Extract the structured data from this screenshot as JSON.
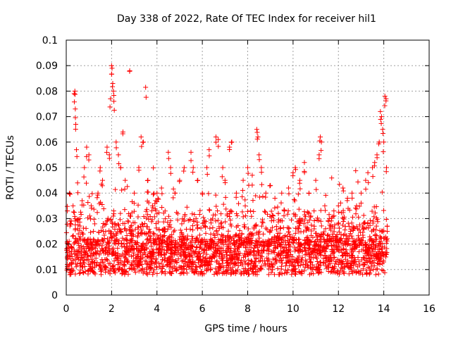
{
  "chart_data": {
    "type": "scatter",
    "title": "Day 338 of 2022, Rate Of TEC Index for receiver hil1",
    "xlabel": "GPS time / hours",
    "ylabel": "ROTI / TECUs",
    "xlim": [
      0,
      16
    ],
    "ylim": [
      0,
      0.1
    ],
    "x_ticks": [
      "0",
      "2",
      "4",
      "6",
      "8",
      "10",
      "12",
      "14",
      "16"
    ],
    "x_tick_values": [
      0,
      2,
      4,
      6,
      8,
      10,
      12,
      14,
      16
    ],
    "y_ticks": [
      "0",
      "0.01",
      "0.02",
      "0.03",
      "0.04",
      "0.05",
      "0.06",
      "0.07",
      "0.08",
      "0.09",
      "0.1"
    ],
    "y_tick_values": [
      0,
      0.01,
      0.02,
      0.03,
      0.04,
      0.05,
      0.06,
      0.07,
      0.08,
      0.09,
      0.1
    ],
    "grid": true,
    "marker": "+",
    "color": "#ff0000",
    "data_range_x": [
      0,
      14.15
    ],
    "series": [
      {
        "name": "hil1",
        "points": [
          [
            0.05,
            0.012
          ],
          [
            0.1,
            0.02
          ],
          [
            0.15,
            0.04
          ],
          [
            0.2,
            0.028
          ],
          [
            0.3,
            0.035
          ],
          [
            0.35,
            0.079
          ],
          [
            0.38,
            0.08
          ],
          [
            0.4,
            0.073
          ],
          [
            0.42,
            0.067
          ],
          [
            0.45,
            0.057
          ],
          [
            0.5,
            0.044
          ],
          [
            0.6,
            0.03
          ],
          [
            0.7,
            0.037
          ],
          [
            0.8,
            0.05
          ],
          [
            0.9,
            0.058
          ],
          [
            1.0,
            0.055
          ],
          [
            1.1,
            0.035
          ],
          [
            1.2,
            0.025
          ],
          [
            1.4,
            0.04
          ],
          [
            1.5,
            0.05
          ],
          [
            1.6,
            0.045
          ],
          [
            1.8,
            0.058
          ],
          [
            1.9,
            0.055
          ],
          [
            1.95,
            0.077
          ],
          [
            2.0,
            0.09
          ],
          [
            2.02,
            0.089
          ],
          [
            2.05,
            0.083
          ],
          [
            2.08,
            0.08
          ],
          [
            2.1,
            0.076
          ],
          [
            2.2,
            0.06
          ],
          [
            2.3,
            0.055
          ],
          [
            2.4,
            0.05
          ],
          [
            2.5,
            0.064
          ],
          [
            2.6,
            0.045
          ],
          [
            2.8,
            0.088
          ],
          [
            3.0,
            0.04
          ],
          [
            3.2,
            0.05
          ],
          [
            3.3,
            0.062
          ],
          [
            3.4,
            0.06
          ],
          [
            3.5,
            0.0815
          ],
          [
            3.6,
            0.045
          ],
          [
            3.8,
            0.035
          ],
          [
            4.0,
            0.04
          ],
          [
            4.2,
            0.042
          ],
          [
            4.5,
            0.056
          ],
          [
            4.6,
            0.05
          ],
          [
            4.8,
            0.04
          ],
          [
            5.0,
            0.045
          ],
          [
            5.2,
            0.05
          ],
          [
            5.5,
            0.056
          ],
          [
            5.6,
            0.05
          ],
          [
            5.8,
            0.045
          ],
          [
            6.0,
            0.04
          ],
          [
            6.2,
            0.05
          ],
          [
            6.3,
            0.057
          ],
          [
            6.6,
            0.062
          ],
          [
            6.7,
            0.061
          ],
          [
            6.9,
            0.05
          ],
          [
            7.0,
            0.045
          ],
          [
            7.2,
            0.058
          ],
          [
            7.3,
            0.06
          ],
          [
            7.5,
            0.04
          ],
          [
            7.8,
            0.045
          ],
          [
            8.0,
            0.05
          ],
          [
            8.2,
            0.047
          ],
          [
            8.4,
            0.065
          ],
          [
            8.45,
            0.062
          ],
          [
            8.5,
            0.055
          ],
          [
            8.6,
            0.05
          ],
          [
            8.8,
            0.04
          ],
          [
            9.0,
            0.043
          ],
          [
            9.2,
            0.038
          ],
          [
            9.5,
            0.04
          ],
          [
            9.8,
            0.042
          ],
          [
            10.0,
            0.048
          ],
          [
            10.1,
            0.05
          ],
          [
            10.3,
            0.045
          ],
          [
            10.5,
            0.052
          ],
          [
            10.7,
            0.04
          ],
          [
            11.0,
            0.045
          ],
          [
            11.15,
            0.055
          ],
          [
            11.2,
            0.062
          ],
          [
            11.25,
            0.06
          ],
          [
            11.4,
            0.035
          ],
          [
            11.6,
            0.03
          ],
          [
            11.8,
            0.033
          ],
          [
            12.0,
            0.035
          ],
          [
            12.2,
            0.042
          ],
          [
            12.4,
            0.038
          ],
          [
            12.6,
            0.04
          ],
          [
            12.8,
            0.035
          ],
          [
            13.0,
            0.04
          ],
          [
            13.2,
            0.045
          ],
          [
            13.3,
            0.048
          ],
          [
            13.5,
            0.05
          ],
          [
            13.6,
            0.052
          ],
          [
            13.7,
            0.055
          ],
          [
            13.8,
            0.06
          ],
          [
            13.85,
            0.072
          ],
          [
            13.9,
            0.07
          ],
          [
            13.95,
            0.065
          ],
          [
            14.0,
            0.06
          ],
          [
            14.05,
            0.078
          ],
          [
            14.1,
            0.077
          ],
          [
            14.12,
            0.05
          ],
          [
            14.15,
            0.025
          ]
        ]
      }
    ]
  }
}
